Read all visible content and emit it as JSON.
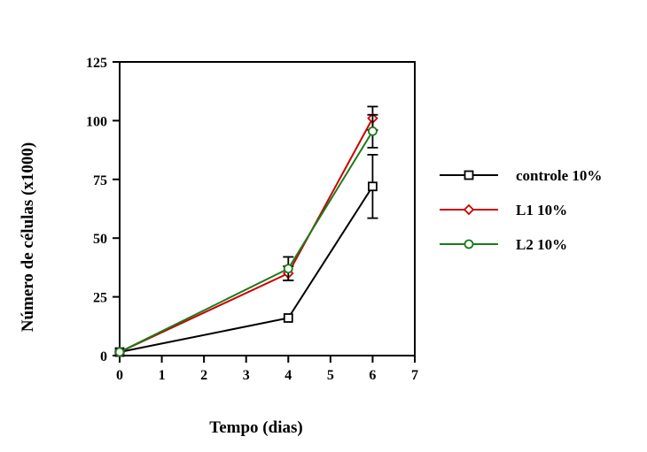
{
  "chart_data": {
    "type": "line",
    "xlabel": "Tempo (dias)",
    "ylabel": "Número de células (x1000)",
    "xlim": [
      0,
      7
    ],
    "ylim": [
      0,
      125
    ],
    "xticks": [
      "0",
      "1",
      "2",
      "3",
      "4",
      "5",
      "6",
      "7"
    ],
    "yticks": [
      "0",
      "25",
      "50",
      "75",
      "100",
      "125"
    ],
    "grid": false,
    "legend_position": "right",
    "series": [
      {
        "name": "controle 10%",
        "color": "#000000",
        "marker": "square",
        "x": [
          0,
          4,
          6
        ],
        "y": [
          1.5,
          16,
          72
        ],
        "error": [
          0,
          0,
          13.5
        ]
      },
      {
        "name": "L1 10%",
        "color": "#cc0000",
        "marker": "diamond",
        "x": [
          0,
          4,
          6
        ],
        "y": [
          1.5,
          35,
          101
        ],
        "error": [
          0,
          3,
          5
        ]
      },
      {
        "name": "L2 10%",
        "color": "#1a7a1a",
        "marker": "circle",
        "x": [
          0,
          4,
          6
        ],
        "y": [
          1.5,
          37,
          95.5
        ],
        "error": [
          0,
          5,
          7
        ]
      }
    ]
  }
}
